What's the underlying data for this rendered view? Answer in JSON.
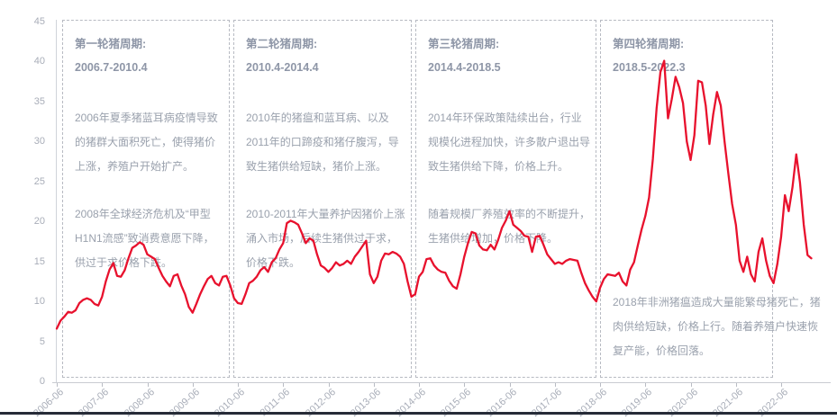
{
  "colors": {
    "line": "#e8112d",
    "title_text": "#8e96a7",
    "body_text": "#9aa1ad",
    "axis_text": "#a8adb8",
    "box_border": "#b7bac2",
    "bottom_bar": "#262b37"
  },
  "cycles": [
    {
      "title": "第一轮猪周期:",
      "period": "2006.7-2010.4",
      "p1": "2006年夏季猪蓝耳病疫情导致的猪群大面积死亡，使得猪价上涨，养殖户开始扩产。",
      "p2": "2008年全球经济危机及“甲型H1N1流感”致消费意愿下降，供过于求价格下跌。"
    },
    {
      "title": "第二轮猪周期:",
      "period": "2010.4-2014.4",
      "p1": "2010年的猪瘟和蓝耳病、以及2011年的口蹄疫和猪仔腹泻，导致生猪供给短缺，猪价上涨。",
      "p2": "2010-2011年大量养护因猪价上涨涌入市场，后续生猪供过于求，价格下跌。"
    },
    {
      "title": "第三轮猪周期:",
      "period": "2014.4-2018.5",
      "p1": "2014年环保政策陆续出台，行业规模化进程加快，许多散户退出导致生猪供给下降，价格上升。",
      "p2": "随着规模厂养殖效率的不断提升，生猪供给增加，价格下降。"
    },
    {
      "title": "第四轮猪周期:",
      "period": "2018.5-2022.3",
      "p1": "2018年非洲猪瘟造成大量能繁母猪死亡，猪肉供给短缺，价格上行。随着养殖户快速恢复产能，价格回落。"
    }
  ],
  "chart_data": {
    "type": "line",
    "x_start": "2006-06",
    "x_frequency": "monthly",
    "x_tick_labels": [
      "2006-06",
      "2007-06",
      "2008-06",
      "2009-06",
      "2010-06",
      "2011-06",
      "2012-06",
      "2013-06",
      "2014-06",
      "2015-06",
      "2016-06",
      "2017-06",
      "2018-06",
      "2019-06",
      "2020-06",
      "2021-06",
      "2022-06"
    ],
    "y_ticks": [
      0,
      5,
      10,
      15,
      20,
      25,
      30,
      35,
      40,
      45
    ],
    "ylim": [
      0,
      45
    ],
    "grid": false,
    "legend": false,
    "line_color": "#e8112d",
    "values": [
      6.7,
      7.7,
      8.2,
      8.8,
      8.7,
      9.0,
      9.9,
      10.3,
      10.5,
      10.3,
      9.8,
      9.6,
      10.7,
      12.6,
      14.1,
      14.9,
      13.3,
      13.2,
      14.0,
      15.5,
      16.8,
      17.1,
      17.5,
      17.2,
      16.0,
      15.7,
      15.4,
      14.3,
      13.3,
      12.6,
      12.0,
      13.3,
      13.5,
      12.1,
      11.0,
      9.4,
      8.7,
      9.8,
      11.0,
      12.0,
      12.9,
      13.3,
      12.4,
      12.1,
      13.2,
      13.3,
      12.1,
      10.5,
      9.9,
      9.8,
      11.0,
      12.4,
      12.7,
      13.2,
      14.0,
      14.4,
      13.8,
      15.0,
      15.5,
      16.6,
      17.4,
      19.9,
      20.2,
      20.0,
      19.7,
      18.6,
      17.4,
      18.0,
      17.7,
      16.0,
      14.6,
      14.3,
      13.8,
      14.3,
      15.0,
      14.6,
      14.8,
      15.2,
      14.8,
      15.7,
      16.3,
      17.0,
      17.7,
      13.5,
      12.4,
      13.2,
      15.2,
      16.1,
      16.0,
      16.3,
      16.1,
      15.7,
      14.8,
      12.6,
      10.7,
      11.0,
      13.2,
      13.8,
      15.4,
      15.5,
      14.6,
      14.1,
      13.8,
      13.7,
      12.7,
      12.0,
      11.7,
      13.5,
      15.7,
      17.4,
      18.8,
      18.6,
      17.1,
      16.6,
      16.5,
      17.2,
      16.6,
      17.8,
      19.3,
      20.2,
      21.4,
      19.7,
      19.3,
      18.9,
      18.3,
      18.2,
      16.3,
      18.2,
      18.3,
      17.2,
      16.0,
      15.4,
      14.8,
      15.0,
      14.8,
      15.2,
      15.4,
      15.3,
      15.2,
      13.7,
      12.4,
      11.5,
      10.7,
      10.1,
      11.8,
      12.9,
      13.5,
      13.4,
      13.3,
      13.7,
      12.6,
      12.1,
      14.1,
      15.0,
      17.1,
      19.1,
      20.8,
      23.1,
      27.9,
      34.3,
      38.8,
      40.2,
      33.0,
      35.4,
      38.2,
      36.9,
      34.9,
      30.1,
      27.8,
      30.9,
      37.7,
      37.5,
      34.6,
      29.8,
      33.5,
      36.3,
      34.6,
      30.1,
      26.1,
      22.3,
      19.7,
      15.2,
      13.8,
      15.7,
      13.5,
      12.6,
      16.3,
      18.0,
      15.2,
      13.3,
      12.4,
      14.8,
      18.2,
      23.4,
      21.4,
      24.4,
      28.5,
      25.0,
      19.7,
      15.9,
      15.5
    ]
  }
}
